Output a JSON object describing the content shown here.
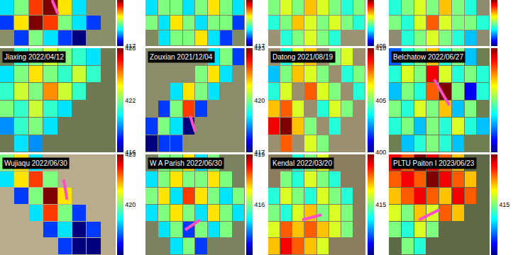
{
  "chart_data": [
    {
      "type": "heatmap",
      "tick_labels": false,
      "zlim": [
        417,
        423
      ],
      "zticks": [
        417
      ],
      "z": [
        [
          419,
          420,
          422,
          423,
          421,
          419,
          null,
          null
        ],
        [
          418,
          421,
          423,
          422,
          420,
          419,
          418,
          null
        ],
        [
          null,
          418,
          420,
          419,
          418,
          417,
          null,
          null
        ]
      ]
    },
    {
      "type": "heatmap",
      "tick_labels": false,
      "zlim": [
        417,
        423
      ],
      "zticks": [
        417
      ],
      "z": [
        [
          419,
          420,
          420,
          419,
          420,
          421,
          420,
          419
        ],
        [
          420,
          419,
          421,
          420,
          419,
          420,
          420,
          418
        ],
        [
          null,
          419,
          420,
          420,
          421,
          419,
          418,
          null
        ]
      ]
    },
    {
      "type": "heatmap",
      "tick_labels": false,
      "zlim": [
        405,
        415
      ],
      "zticks": [
        405
      ],
      "z": [
        [
          410,
          411,
          410,
          412,
          411,
          410,
          409,
          410
        ],
        [
          409,
          410,
          412,
          411,
          410,
          411,
          410,
          409
        ],
        [
          null,
          409,
          410,
          411,
          410,
          409,
          null,
          null
        ]
      ]
    },
    {
      "type": "heatmap",
      "tick_labels": false,
      "zlim": [
        400,
        410
      ],
      "zticks": [],
      "z": [
        [
          404,
          405,
          406,
          405,
          407,
          405,
          404,
          null
        ],
        [
          405,
          404,
          406,
          408,
          406,
          405,
          405,
          404
        ],
        [
          null,
          404,
          405,
          406,
          405,
          404,
          403,
          null
        ]
      ]
    },
    {
      "type": "heatmap",
      "title": "Jiaxing 2022/04/12",
      "tick_labels": false,
      "zlim": [
        416,
        428
      ],
      "zticks": [
        416,
        422,
        428
      ],
      "z": [
        [
          null,
          421,
          422,
          423,
          422,
          421,
          420,
          null
        ],
        [
          420,
          422,
          424,
          422,
          421,
          423,
          421,
          null
        ],
        [
          421,
          423,
          422,
          425,
          423,
          421,
          null,
          null
        ],
        [
          422,
          421,
          423,
          421,
          420,
          null,
          null,
          null
        ],
        [
          419,
          421,
          422,
          420,
          null,
          null,
          null,
          null
        ],
        [
          null,
          420,
          419,
          null,
          null,
          null,
          null,
          null
        ]
      ]
    },
    {
      "type": "heatmap",
      "title": "Zouxian 2021/12/04",
      "tick_labels": false,
      "zlim": [
        417,
        423
      ],
      "zticks": [
        417,
        420,
        423
      ],
      "z": [
        [
          null,
          null,
          null,
          null,
          null,
          419,
          420,
          418
        ],
        [
          null,
          null,
          null,
          null,
          420,
          421,
          419,
          null
        ],
        [
          null,
          null,
          419,
          421,
          420,
          419,
          null,
          null
        ],
        [
          null,
          418,
          420,
          422,
          418,
          null,
          null,
          null
        ],
        [
          418,
          420,
          419,
          417,
          null,
          null,
          null,
          null
        ],
        [
          417,
          418,
          418,
          null,
          null,
          null,
          null,
          null
        ]
      ]
    },
    {
      "type": "heatmap",
      "title": "Datong 2021/08/19",
      "tick_labels": false,
      "zlim": [
        400,
        410
      ],
      "zticks": [
        400,
        405,
        410
      ],
      "z": [
        [
          null,
          404,
          406,
          407,
          null,
          405,
          406,
          null
        ],
        [
          403,
          405,
          407,
          406,
          405,
          null,
          404,
          405
        ],
        [
          404,
          406,
          null,
          408,
          406,
          405,
          null,
          404
        ],
        [
          407,
          408,
          406,
          null,
          404,
          406,
          405,
          null
        ],
        [
          409,
          410,
          407,
          405,
          null,
          404,
          null,
          null
        ],
        [
          null,
          408,
          null,
          406,
          405,
          null,
          null,
          null
        ]
      ]
    },
    {
      "type": "heatmap",
      "title": "Belchatow 2022/06/27",
      "tick_labels": false,
      "zlim": [
        405,
        415
      ],
      "zticks": [],
      "z": [
        [
          407,
          409,
          410,
          412,
          409,
          410,
          408,
          null
        ],
        [
          409,
          411,
          410,
          414,
          411,
          409,
          410,
          409
        ],
        [
          408,
          410,
          409,
          413,
          415,
          410,
          406,
          409
        ],
        [
          410,
          409,
          411,
          410,
          412,
          408,
          410,
          null
        ],
        [
          409,
          410,
          408,
          410,
          409,
          411,
          409,
          408
        ],
        [
          null,
          408,
          409,
          410,
          409,
          408,
          null,
          null
        ]
      ]
    },
    {
      "type": "heatmap",
      "title": "Wujiaqu 2022/06/30",
      "tick_labels": false,
      "zlim": [
        417,
        423
      ],
      "zticks": [
        420,
        423
      ],
      "z": [
        [
          420,
          421,
          419,
          null,
          null,
          null,
          null,
          null
        ],
        [
          419,
          421,
          422,
          420,
          null,
          null,
          null,
          null
        ],
        [
          null,
          418,
          420,
          423,
          421,
          null,
          null,
          null
        ],
        [
          null,
          null,
          419,
          422,
          420,
          418,
          null,
          null
        ],
        [
          null,
          null,
          null,
          418,
          419,
          417,
          418,
          null
        ],
        [
          null,
          null,
          null,
          null,
          418,
          417,
          417,
          null
        ]
      ]
    },
    {
      "type": "heatmap",
      "title": "W A Parish 2022/06/30",
      "tick_labels": false,
      "zlim": [
        413,
        419
      ],
      "zticks": [
        416,
        419
      ],
      "z": [
        [
          null,
          416,
          416,
          417,
          415,
          416,
          null,
          null
        ],
        [
          415,
          416,
          417,
          416,
          416,
          417,
          416,
          null
        ],
        [
          416,
          417,
          415,
          418,
          417,
          416,
          415,
          416
        ],
        [
          415,
          416,
          417,
          416,
          415,
          417,
          416,
          415
        ],
        [
          null,
          415,
          416,
          414,
          416,
          415,
          416,
          null
        ],
        [
          null,
          null,
          415,
          416,
          414,
          null,
          null,
          null
        ]
      ]
    },
    {
      "type": "heatmap",
      "title": "Kendal 2022/03/20",
      "tick_labels": false,
      "zlim": [
        410,
        420
      ],
      "zticks": [
        415
      ],
      "z": [
        [
          null,
          null,
          414,
          415,
          416,
          null,
          null,
          null
        ],
        [
          null,
          415,
          414,
          416,
          415,
          414,
          null,
          null
        ],
        [
          414,
          416,
          415,
          414,
          416,
          415,
          414,
          null
        ],
        [
          415,
          414,
          416,
          417,
          415,
          416,
          415,
          null
        ],
        [
          416,
          418,
          417,
          418,
          417,
          416,
          415,
          null
        ],
        [
          417,
          419,
          418,
          417,
          416,
          null,
          null,
          null
        ]
      ]
    },
    {
      "type": "heatmap",
      "title": "PLTU Paiton I 2023/06/23",
      "tick_labels": false,
      "zlim": [
        410,
        420
      ],
      "zticks": [
        415
      ],
      "z": [
        [
          419,
          418,
          420,
          419,
          418,
          417,
          null,
          null
        ],
        [
          418,
          419,
          418,
          420,
          419,
          418,
          417,
          null
        ],
        [
          417,
          418,
          419,
          418,
          417,
          419,
          418,
          null
        ],
        [
          416,
          415,
          417,
          416,
          418,
          417,
          null,
          null
        ],
        [
          415,
          414,
          416,
          415,
          null,
          null,
          null,
          null
        ],
        [
          null,
          415,
          414,
          null,
          null,
          null,
          null,
          null
        ]
      ]
    }
  ]
}
